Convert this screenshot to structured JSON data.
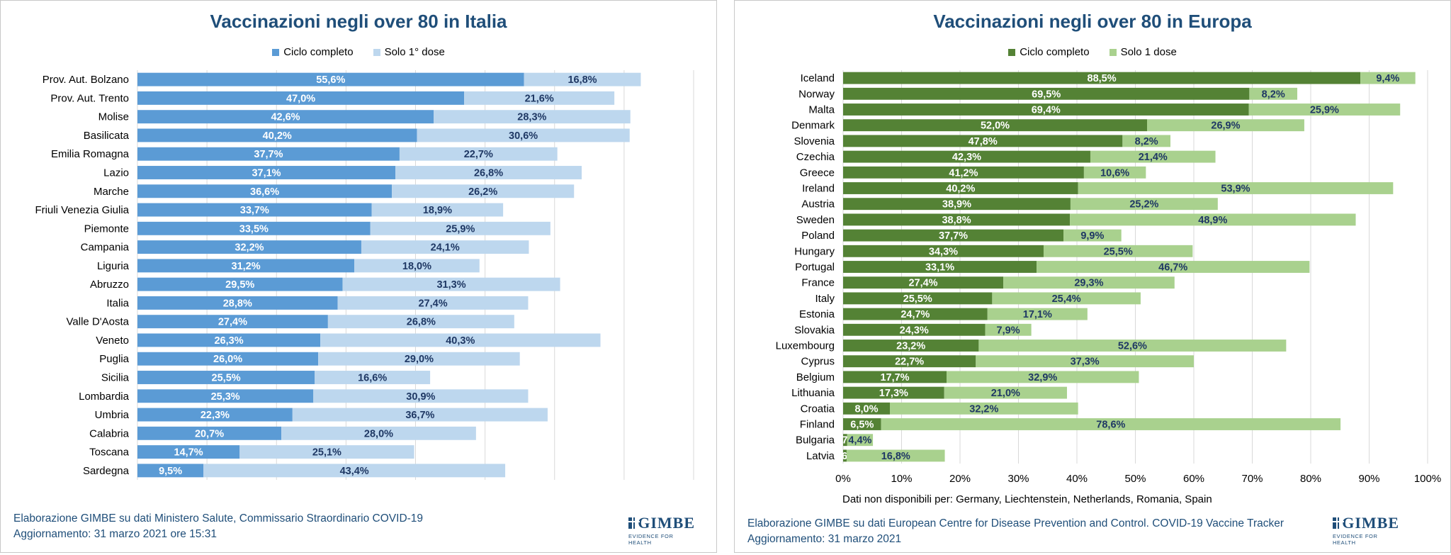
{
  "chart_data": [
    {
      "type": "bar",
      "orientation": "horizontal",
      "stacked": true,
      "title": "Vaccinazioni negli over 80 in Italia",
      "categories": [
        "Prov. Aut. Bolzano",
        "Prov. Aut. Trento",
        "Molise",
        "Basilicata",
        "Emilia Romagna",
        "Lazio",
        "Marche",
        "Friuli Venezia Giulia",
        "Piemonte",
        "Campania",
        "Liguria",
        "Abruzzo",
        "Italia",
        "Valle D'Aosta",
        "Veneto",
        "Puglia",
        "Sicilia",
        "Lombardia",
        "Umbria",
        "Calabria",
        "Toscana",
        "Sardegna"
      ],
      "series": [
        {
          "name": "Ciclo completo",
          "color": "#5b9bd5",
          "values": [
            55.6,
            47.0,
            42.6,
            40.2,
            37.7,
            37.1,
            36.6,
            33.7,
            33.5,
            32.2,
            31.2,
            29.5,
            28.8,
            27.4,
            26.3,
            26.0,
            25.5,
            25.3,
            22.3,
            20.7,
            14.7,
            9.5
          ],
          "labels": [
            "55,6%",
            "47,0%",
            "42,6%",
            "40,2%",
            "37,7%",
            "37,1%",
            "36,6%",
            "33,7%",
            "33,5%",
            "32,2%",
            "31,2%",
            "29,5%",
            "28,8%",
            "27,4%",
            "26,3%",
            "26,0%",
            "25,5%",
            "25,3%",
            "22,3%",
            "20,7%",
            "14,7%",
            "9,5%"
          ]
        },
        {
          "name": "Solo 1° dose",
          "color": "#bdd7ee",
          "values": [
            16.8,
            21.6,
            28.3,
            30.6,
            22.7,
            26.8,
            26.2,
            18.9,
            25.9,
            24.1,
            18.0,
            31.3,
            27.4,
            26.8,
            40.3,
            29.0,
            16.6,
            30.9,
            36.7,
            28.0,
            25.1,
            43.4
          ],
          "labels": [
            "16,8%",
            "21,6%",
            "28,3%",
            "30,6%",
            "22,7%",
            "26,8%",
            "26,2%",
            "18,9%",
            "25,9%",
            "24,1%",
            "18,0%",
            "31,3%",
            "27,4%",
            "26,8%",
            "40,3%",
            "29,0%",
            "16,6%",
            "30,9%",
            "36,7%",
            "28,0%",
            "25,1%",
            "43,4%"
          ]
        }
      ],
      "xlim": [
        0,
        80
      ],
      "xticks": [
        "0%",
        "10%",
        "20%",
        "30%",
        "40%",
        "50%",
        "60%",
        "70%",
        "80%"
      ],
      "grid": true,
      "legend": "top",
      "footer": [
        "Elaborazione GIMBE su dati Ministero Salute, Commissario Straordinario COVID-19",
        "Aggiornamento: 31 marzo 2021 ore 15:31"
      ]
    },
    {
      "type": "bar",
      "orientation": "horizontal",
      "stacked": true,
      "title": "Vaccinazioni negli over 80 in Europa",
      "categories": [
        "Iceland",
        "Norway",
        "Malta",
        "Denmark",
        "Slovenia",
        "Czechia",
        "Greece",
        "Ireland",
        "Austria",
        "Sweden",
        "Poland",
        "Hungary",
        "Portugal",
        "France",
        "Italy",
        "Estonia",
        "Slovakia",
        "Luxembourg",
        "Cyprus",
        "Belgium",
        "Lithuania",
        "Croatia",
        "Finland",
        "Bulgaria",
        "Latvia"
      ],
      "series": [
        {
          "name": "Ciclo completo",
          "color": "#548235",
          "values": [
            88.5,
            69.5,
            69.4,
            52.0,
            47.8,
            42.3,
            41.2,
            40.2,
            38.9,
            38.8,
            37.7,
            34.3,
            33.1,
            27.4,
            25.5,
            24.7,
            24.3,
            23.2,
            22.7,
            17.7,
            17.3,
            8.0,
            6.5,
            0.7,
            0.6
          ],
          "labels": [
            "88,5%",
            "69,5%",
            "69,4%",
            "52,0%",
            "47,8%",
            "42,3%",
            "41,2%",
            "40,2%",
            "38,9%",
            "38,8%",
            "37,7%",
            "34,3%",
            "33,1%",
            "27,4%",
            "25,5%",
            "24,7%",
            "24,3%",
            "23,2%",
            "22,7%",
            "17,7%",
            "17,3%",
            "8,0%",
            "6,5%",
            "0,7%",
            "0,6%"
          ]
        },
        {
          "name": "Solo 1 dose",
          "color": "#a9d18e",
          "values": [
            9.4,
            8.2,
            25.9,
            26.9,
            8.2,
            21.4,
            10.6,
            53.9,
            25.2,
            48.9,
            9.9,
            25.5,
            46.7,
            29.3,
            25.4,
            17.1,
            7.9,
            52.6,
            37.3,
            32.9,
            21.0,
            32.2,
            78.6,
            4.4,
            16.8
          ],
          "labels": [
            "9,4%",
            "8,2%",
            "25,9%",
            "26,9%",
            "8,2%",
            "21,4%",
            "10,6%",
            "53,9%",
            "25,2%",
            "48,9%",
            "9,9%",
            "25,5%",
            "46,7%",
            "29,3%",
            "25,4%",
            "17,1%",
            "7,9%",
            "52,6%",
            "37,3%",
            "32,9%",
            "21,0%",
            "32,2%",
            "78,6%",
            "4,4%",
            "16,8%"
          ]
        }
      ],
      "xlim": [
        0,
        100
      ],
      "xticks": [
        "0%",
        "10%",
        "20%",
        "30%",
        "40%",
        "50%",
        "60%",
        "70%",
        "80%",
        "90%",
        "100%"
      ],
      "grid": true,
      "legend": "top",
      "note": "Dati non disponibili per: Germany, Liechtenstein, Netherlands, Romania, Spain",
      "footer": [
        "Elaborazione GIMBE su dati European Centre for Disease Prevention and Control. COVID-19 Vaccine Tracker",
        "Aggiornamento: 31 marzo 2021"
      ]
    }
  ],
  "logo": {
    "word": "GIMBE",
    "tagline": "EVIDENCE FOR HEALTH"
  }
}
